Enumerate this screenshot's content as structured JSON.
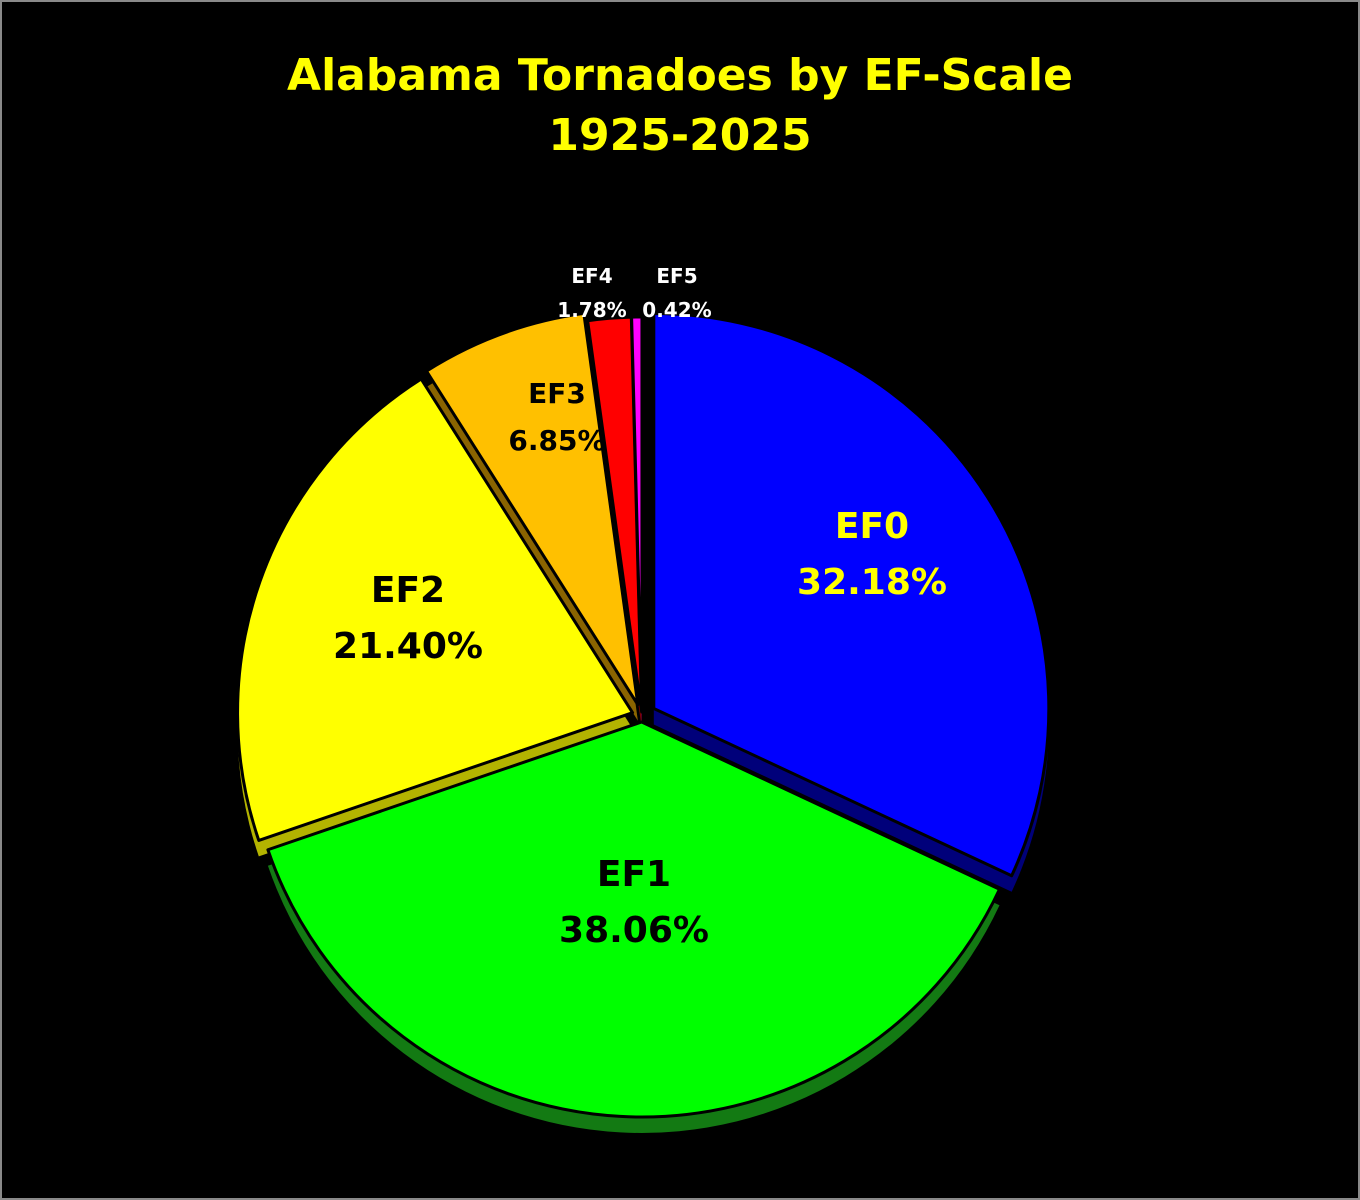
{
  "chart_data": {
    "type": "pie",
    "title": "Alabama Tornadoes by EF-Scale",
    "subtitle": "1925-2025",
    "slices": [
      {
        "label": "EF0",
        "value": 32.18,
        "value_text": "32.18%",
        "color": "#0000ff",
        "side_color": "#00007a",
        "text_color": "#ffff00"
      },
      {
        "label": "EF1",
        "value": 38.06,
        "value_text": "38.06%",
        "color": "#00ff00",
        "side_color": "#137a13",
        "text_color": "#000000"
      },
      {
        "label": "EF2",
        "value": 21.4,
        "value_text": "21.40%",
        "color": "#ffff00",
        "side_color": "#b3b300",
        "text_color": "#000000"
      },
      {
        "label": "EF3",
        "value": 6.85,
        "value_text": "6.85%",
        "color": "#ffc000",
        "side_color": "#8a6400",
        "text_color": "#000000"
      },
      {
        "label": "EF4",
        "value": 1.78,
        "value_text": "1.78%",
        "color": "#ff0000",
        "side_color": "#800000",
        "text_color": "#ffffff"
      },
      {
        "label": "EF5",
        "value": 0.42,
        "value_text": "0.42%",
        "color": "#ff00ff",
        "side_color": "#800080",
        "text_color": "#ffffff"
      }
    ],
    "background": "#000000"
  }
}
